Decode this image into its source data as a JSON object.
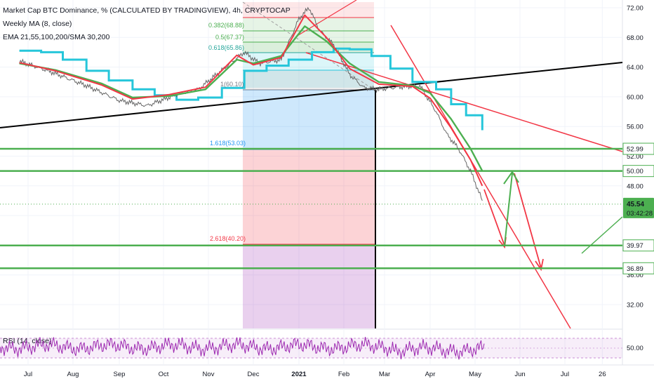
{
  "chart_data": {
    "type": "line",
    "title": "Market Cap BTC Dominance, % (CALCULATED BY TRADINGVIEW), 4h, CRYPTOCAP",
    "indicators": [
      "Weekly MA (8, close)",
      "EMA 21,55,100,200/SMA 30,200"
    ],
    "rsi_label": "RSI (14, close)",
    "y_ticks": [
      "72.00",
      "68.00",
      "64.00",
      "60.00",
      "56.00",
      "52.00",
      "48.00",
      "44.00",
      "40.00",
      "36.00",
      "32.00"
    ],
    "rsi_tick": "50.00",
    "x_ticks": [
      "Jul",
      "Aug",
      "Sep",
      "Oct",
      "Nov",
      "Dec",
      "2021",
      "Feb",
      "Mar",
      "Apr",
      "May",
      "Jun",
      "Jul",
      "26"
    ],
    "ylim": [
      28.5,
      73.5
    ],
    "price": {
      "x": [
        "2020-06-25",
        "2020-07-15",
        "2020-08-10",
        "2020-09-01",
        "2020-09-20",
        "2020-10-10",
        "2020-10-25",
        "2020-11-10",
        "2020-11-25",
        "2020-12-05",
        "2020-12-20",
        "2021-01-01",
        "2021-01-08",
        "2021-01-15",
        "2021-01-25",
        "2021-02-05",
        "2021-02-15",
        "2021-02-25",
        "2021-03-10",
        "2021-03-25",
        "2021-04-05",
        "2021-04-12",
        "2021-04-20",
        "2021-04-28",
        "2021-05-06"
      ],
      "y": [
        64.8,
        63.5,
        61.5,
        59.5,
        58.8,
        60.3,
        61.0,
        63.6,
        66.0,
        64.5,
        65.0,
        70.5,
        72.0,
        69.0,
        67.0,
        63.0,
        61.2,
        61.0,
        61.3,
        61.5,
        58.0,
        55.0,
        53.0,
        50.0,
        46.0
      ]
    },
    "ema_green": {
      "x": [
        "2020-06-25",
        "2020-07-20",
        "2020-08-20",
        "2020-09-10",
        "2020-10-05",
        "2020-10-30",
        "2020-11-20",
        "2020-12-01",
        "2020-12-20",
        "2021-01-05",
        "2021-01-20",
        "2021-02-05",
        "2021-02-25",
        "2021-03-20",
        "2021-04-01",
        "2021-04-15",
        "2021-04-28",
        "2021-05-06"
      ],
      "y": [
        64.5,
        63.6,
        61.8,
        59.9,
        60.1,
        61.0,
        65.0,
        64.5,
        65.5,
        69.5,
        67.5,
        64.5,
        62.0,
        61.5,
        60.5,
        57.0,
        53.0,
        50.0
      ]
    },
    "ema_red": {
      "x": [
        "2020-06-25",
        "2020-07-20",
        "2020-08-20",
        "2020-09-10",
        "2020-10-05",
        "2020-10-30",
        "2020-11-20",
        "2020-12-01",
        "2020-12-20",
        "2021-01-05",
        "2021-01-20",
        "2021-02-05",
        "2021-02-25",
        "2021-03-20",
        "2021-04-01",
        "2021-04-15",
        "2021-04-28",
        "2021-05-06"
      ],
      "y": [
        64.6,
        63.5,
        61.6,
        59.7,
        60.3,
        61.3,
        65.6,
        64.3,
        65.3,
        71.0,
        68.0,
        63.8,
        61.7,
        61.4,
        59.8,
        55.8,
        51.5,
        48.0
      ]
    },
    "weekly_ma": {
      "x": [
        "2020-06-25",
        "2020-07-10",
        "2020-07-25",
        "2020-08-10",
        "2020-08-25",
        "2020-09-10",
        "2020-09-25",
        "2020-10-10",
        "2020-10-25",
        "2020-11-10",
        "2020-11-25",
        "2020-12-10",
        "2020-12-25",
        "2021-01-10",
        "2021-01-25",
        "2021-02-05",
        "2021-02-20",
        "2021-03-05",
        "2021-03-20",
        "2021-04-05",
        "2021-04-15",
        "2021-04-25",
        "2021-05-06"
      ],
      "y": [
        66.2,
        66.0,
        65.0,
        63.5,
        62.2,
        61.0,
        60.2,
        59.6,
        59.9,
        61.2,
        63.5,
        64.2,
        65.0,
        66.0,
        66.5,
        66.4,
        65.5,
        63.8,
        62.0,
        61.0,
        59.0,
        57.5,
        55.5
      ]
    },
    "levels": [
      {
        "label": "52.99",
        "value": 52.99
      },
      {
        "label": "50.00",
        "value": 50.0
      },
      {
        "label": "39.97",
        "value": 39.97
      },
      {
        "label": "36.89",
        "value": 36.89
      }
    ],
    "current": {
      "label": "45.54",
      "value": 45.54,
      "countdown": "03:42:28"
    },
    "fib_labels": [
      "1.618(53.03)",
      "2.618(40.20)",
      "0.382(68.88)",
      "0.5(67.37)",
      "0.618(65.86)",
      "1(60.10)"
    ],
    "colors": {
      "price": "#666666",
      "ema_green": "#4caf50",
      "ema_red": "#f23645",
      "weekly_ma": "#26c6da",
      "levels": "#4caf50",
      "trend": "#f23645",
      "support": "#000000",
      "rsi": "#9c27b0"
    }
  }
}
